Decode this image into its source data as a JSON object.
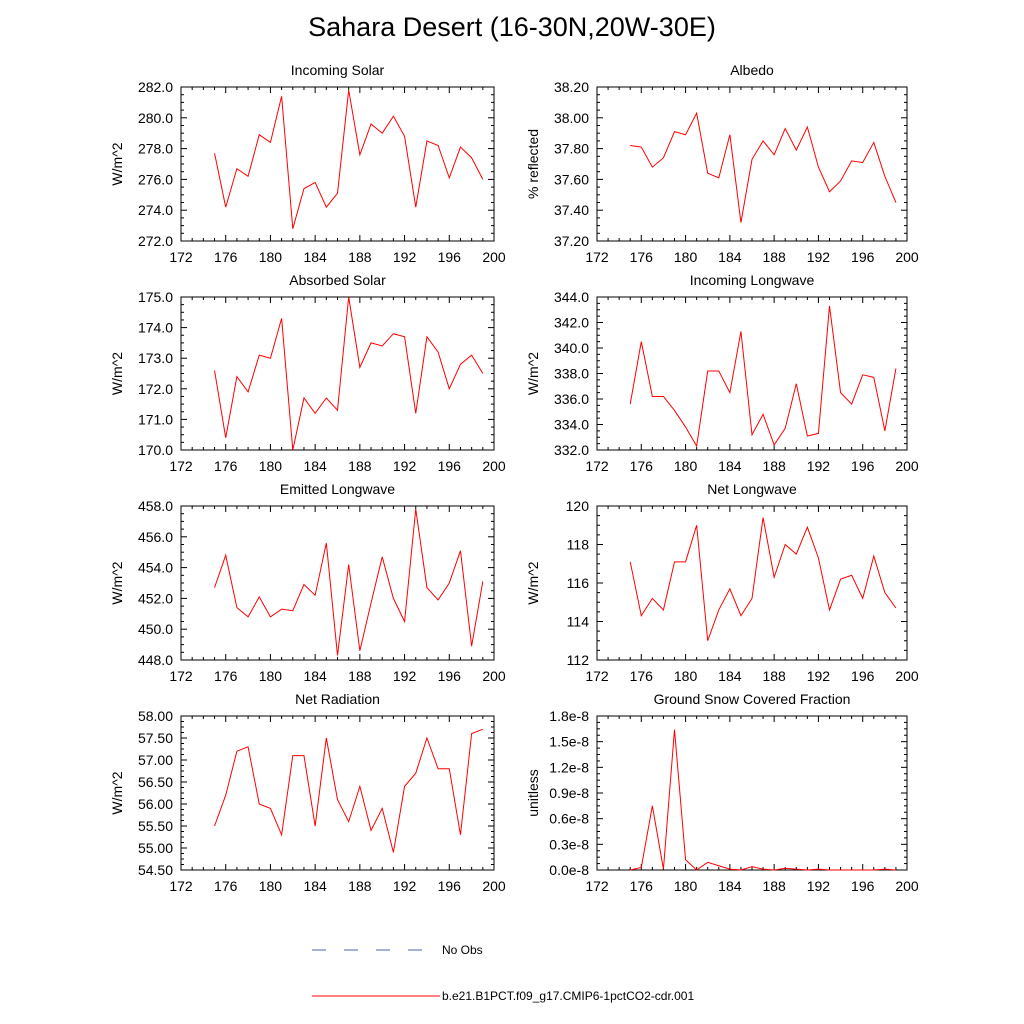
{
  "page_title": "Sahara Desert (16-30N,20W-30E)",
  "colors": {
    "model_line": "#ff0000",
    "obs_line": "#5060b0",
    "axis": "#000000"
  },
  "legend": [
    {
      "label": "No Obs",
      "style": "dashed",
      "color": "#5060b0"
    },
    {
      "label": "b.e21.B1PCT.f09_g17.CMIP6-1pctCO2-cdr.001",
      "style": "solid",
      "color": "#ff0000"
    }
  ],
  "chart_data": [
    {
      "type": "line",
      "title": "Incoming Solar",
      "ylabel": "W/m^2",
      "xlim": [
        172,
        200
      ],
      "ylim": [
        272,
        282
      ],
      "xticks": [
        172,
        176,
        180,
        184,
        188,
        192,
        196,
        200
      ],
      "xtick_labels": [
        "172",
        "176",
        "180",
        "184",
        "188",
        "192",
        "196",
        "200"
      ],
      "yticks": [
        272,
        274,
        276,
        278,
        280,
        282
      ],
      "ytick_labels": [
        "272.0",
        "274.0",
        "276.0",
        "278.0",
        "280.0",
        "282.0"
      ],
      "x": [
        175,
        176,
        177,
        178,
        179,
        180,
        181,
        182,
        183,
        184,
        185,
        186,
        187,
        188,
        189,
        190,
        191,
        192,
        193,
        194,
        195,
        196,
        197,
        198,
        199
      ],
      "series": [
        {
          "values": [
            277.7,
            274.2,
            276.7,
            276.2,
            278.9,
            278.4,
            281.4,
            272.8,
            275.4,
            275.8,
            274.2,
            275.1,
            281.8,
            277.6,
            279.6,
            279.0,
            280.1,
            278.8,
            274.2,
            278.5,
            278.2,
            276.1,
            278.1,
            277.4,
            276.0
          ]
        }
      ]
    },
    {
      "type": "line",
      "title": "Albedo",
      "ylabel": "% reflected",
      "xlim": [
        172,
        200
      ],
      "ylim": [
        37.2,
        38.2
      ],
      "xticks": [
        172,
        176,
        180,
        184,
        188,
        192,
        196,
        200
      ],
      "xtick_labels": [
        "172",
        "176",
        "180",
        "184",
        "188",
        "192",
        "196",
        "200"
      ],
      "yticks": [
        37.2,
        37.4,
        37.6,
        37.8,
        38.0,
        38.2
      ],
      "ytick_labels": [
        "37.20",
        "37.40",
        "37.60",
        "37.80",
        "38.00",
        "38.20"
      ],
      "x": [
        175,
        176,
        177,
        178,
        179,
        180,
        181,
        182,
        183,
        184,
        185,
        186,
        187,
        188,
        189,
        190,
        191,
        192,
        193,
        194,
        195,
        196,
        197,
        198,
        199
      ],
      "series": [
        {
          "values": [
            37.82,
            37.81,
            37.68,
            37.74,
            37.91,
            37.89,
            38.03,
            37.64,
            37.61,
            37.89,
            37.32,
            37.73,
            37.85,
            37.76,
            37.93,
            37.79,
            37.94,
            37.68,
            37.52,
            37.59,
            37.72,
            37.71,
            37.84,
            37.62,
            37.45
          ]
        }
      ]
    },
    {
      "type": "line",
      "title": "Absorbed Solar",
      "ylabel": "W/m^2",
      "xlim": [
        172,
        200
      ],
      "ylim": [
        170,
        175
      ],
      "xticks": [
        172,
        176,
        180,
        184,
        188,
        192,
        196,
        200
      ],
      "xtick_labels": [
        "172",
        "176",
        "180",
        "184",
        "188",
        "192",
        "196",
        "200"
      ],
      "yticks": [
        170,
        171,
        172,
        173,
        174,
        175
      ],
      "ytick_labels": [
        "170.0",
        "171.0",
        "172.0",
        "173.0",
        "174.0",
        "175.0"
      ],
      "x": [
        175,
        176,
        177,
        178,
        179,
        180,
        181,
        182,
        183,
        184,
        185,
        186,
        187,
        188,
        189,
        190,
        191,
        192,
        193,
        194,
        195,
        196,
        197,
        198,
        199
      ],
      "series": [
        {
          "values": [
            172.6,
            170.4,
            172.4,
            171.9,
            173.1,
            173.0,
            174.3,
            170.0,
            171.7,
            171.2,
            171.7,
            171.3,
            175.0,
            172.7,
            173.5,
            173.4,
            173.8,
            173.7,
            171.2,
            173.7,
            173.2,
            172.0,
            172.8,
            173.1,
            172.5
          ]
        }
      ]
    },
    {
      "type": "line",
      "title": "Incoming Longwave",
      "ylabel": "W/m^2",
      "xlim": [
        172,
        200
      ],
      "ylim": [
        332,
        344
      ],
      "xticks": [
        172,
        176,
        180,
        184,
        188,
        192,
        196,
        200
      ],
      "xtick_labels": [
        "172",
        "176",
        "180",
        "184",
        "188",
        "192",
        "196",
        "200"
      ],
      "yticks": [
        332,
        334,
        336,
        338,
        340,
        342,
        344
      ],
      "ytick_labels": [
        "332.0",
        "334.0",
        "336.0",
        "338.0",
        "340.0",
        "342.0",
        "344.0"
      ],
      "x": [
        175,
        176,
        177,
        178,
        179,
        180,
        181,
        182,
        183,
        184,
        185,
        186,
        187,
        188,
        189,
        190,
        191,
        192,
        193,
        194,
        195,
        196,
        197,
        198,
        199
      ],
      "series": [
        {
          "values": [
            335.6,
            340.5,
            336.2,
            336.2,
            335.1,
            333.8,
            332.3,
            338.2,
            338.2,
            336.5,
            341.3,
            333.2,
            334.8,
            332.4,
            333.7,
            337.2,
            333.1,
            333.3,
            343.3,
            336.5,
            335.6,
            337.9,
            337.7,
            333.5,
            338.4
          ]
        }
      ]
    },
    {
      "type": "line",
      "title": "Emitted Longwave",
      "ylabel": "W/m^2",
      "xlim": [
        172,
        200
      ],
      "ylim": [
        448,
        458
      ],
      "xticks": [
        172,
        176,
        180,
        184,
        188,
        192,
        196,
        200
      ],
      "xtick_labels": [
        "172",
        "176",
        "180",
        "184",
        "188",
        "192",
        "196",
        "200"
      ],
      "yticks": [
        448,
        450,
        452,
        454,
        456,
        458
      ],
      "ytick_labels": [
        "448.0",
        "450.0",
        "452.0",
        "454.0",
        "456.0",
        "458.0"
      ],
      "x": [
        175,
        176,
        177,
        178,
        179,
        180,
        181,
        182,
        183,
        184,
        185,
        186,
        187,
        188,
        189,
        190,
        191,
        192,
        193,
        194,
        195,
        196,
        197,
        198,
        199
      ],
      "series": [
        {
          "values": [
            452.7,
            454.8,
            451.4,
            450.8,
            452.1,
            450.8,
            451.3,
            451.2,
            452.9,
            452.2,
            455.6,
            448.3,
            454.2,
            448.6,
            451.7,
            454.7,
            452.0,
            450.5,
            457.8,
            452.7,
            451.9,
            453.0,
            455.1,
            448.9,
            453.1
          ]
        }
      ]
    },
    {
      "type": "line",
      "title": "Net Longwave",
      "ylabel": "W/m^2",
      "xlim": [
        172,
        200
      ],
      "ylim": [
        112,
        120
      ],
      "xticks": [
        172,
        176,
        180,
        184,
        188,
        192,
        196,
        200
      ],
      "xtick_labels": [
        "172",
        "176",
        "180",
        "184",
        "188",
        "192",
        "196",
        "200"
      ],
      "yticks": [
        112,
        114,
        116,
        118,
        120
      ],
      "ytick_labels": [
        "112",
        "114",
        "116",
        "118",
        "120"
      ],
      "x": [
        175,
        176,
        177,
        178,
        179,
        180,
        181,
        182,
        183,
        184,
        185,
        186,
        187,
        188,
        189,
        190,
        191,
        192,
        193,
        194,
        195,
        196,
        197,
        198,
        199
      ],
      "series": [
        {
          "values": [
            117.1,
            114.3,
            115.2,
            114.6,
            117.1,
            117.1,
            119.0,
            113.0,
            114.6,
            115.7,
            114.3,
            115.2,
            119.4,
            116.3,
            118.0,
            117.5,
            118.9,
            117.3,
            114.6,
            116.2,
            116.4,
            115.2,
            117.4,
            115.5,
            114.7
          ]
        }
      ]
    },
    {
      "type": "line",
      "title": "Net Radiation",
      "ylabel": "W/m^2",
      "xlim": [
        172,
        200
      ],
      "ylim": [
        54.5,
        58.0
      ],
      "xticks": [
        172,
        176,
        180,
        184,
        188,
        192,
        196,
        200
      ],
      "xtick_labels": [
        "172",
        "176",
        "180",
        "184",
        "188",
        "192",
        "196",
        "200"
      ],
      "yticks": [
        54.5,
        55.0,
        55.5,
        56.0,
        56.5,
        57.0,
        57.5,
        58.0
      ],
      "ytick_labels": [
        "54.50",
        "55.00",
        "55.50",
        "56.00",
        "56.50",
        "57.00",
        "57.50",
        "58.00"
      ],
      "x": [
        175,
        176,
        177,
        178,
        179,
        180,
        181,
        182,
        183,
        184,
        185,
        186,
        187,
        188,
        189,
        190,
        191,
        192,
        193,
        194,
        195,
        196,
        197,
        198,
        199
      ],
      "series": [
        {
          "values": [
            55.5,
            56.2,
            57.2,
            57.3,
            56.0,
            55.9,
            55.3,
            57.1,
            57.1,
            55.5,
            57.5,
            56.1,
            55.6,
            56.4,
            55.4,
            55.9,
            54.9,
            56.4,
            56.7,
            57.5,
            56.8,
            56.8,
            55.3,
            57.6,
            57.7
          ]
        }
      ]
    },
    {
      "type": "line",
      "title": "Ground Snow Covered Fraction",
      "ylabel": "unitless",
      "xlim": [
        172,
        200
      ],
      "ylim": [
        0,
        1.8e-08
      ],
      "xticks": [
        172,
        176,
        180,
        184,
        188,
        192,
        196,
        200
      ],
      "xtick_labels": [
        "172",
        "176",
        "180",
        "184",
        "188",
        "192",
        "196",
        "200"
      ],
      "yticks": [
        0,
        3e-09,
        6e-09,
        9e-09,
        1.2e-08,
        1.5e-08,
        1.8e-08
      ],
      "ytick_labels": [
        "0.0e-8",
        "0.3e-8",
        "0.6e-8",
        "0.9e-8",
        "1.2e-8",
        "1.5e-8",
        "1.8e-8"
      ],
      "x": [
        175,
        176,
        177,
        178,
        179,
        180,
        181,
        182,
        183,
        184,
        185,
        186,
        187,
        188,
        189,
        190,
        191,
        192,
        193,
        194,
        195,
        196,
        197,
        198,
        199
      ],
      "series": [
        {
          "values": [
            0,
            3e-10,
            7.5e-09,
            1e-10,
            1.64e-08,
            1.2e-09,
            0,
            9e-10,
            5e-10,
            1e-10,
            0,
            4e-10,
            1e-10,
            0,
            2e-10,
            1e-10,
            0,
            1e-10,
            0,
            0,
            0,
            0,
            0,
            1e-10,
            0
          ]
        }
      ]
    }
  ]
}
